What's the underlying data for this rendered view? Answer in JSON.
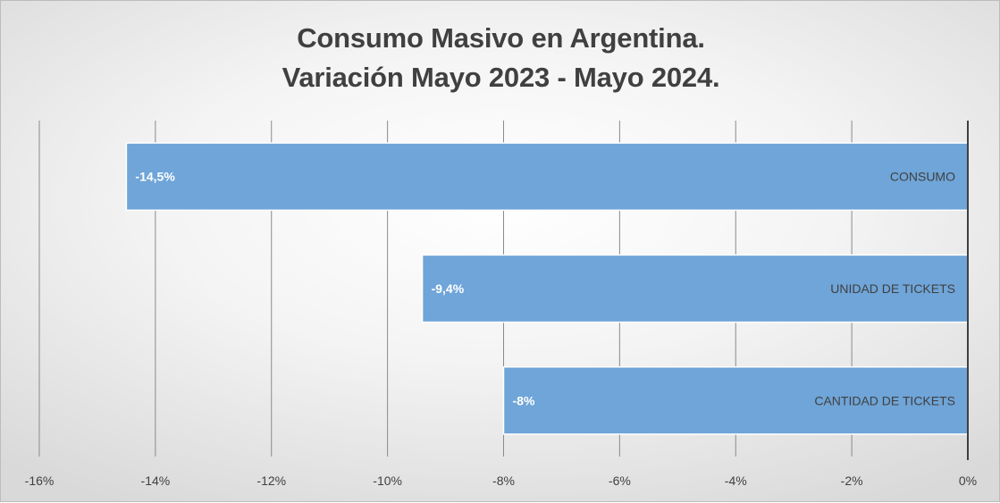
{
  "chart_data": {
    "type": "bar",
    "orientation": "horizontal",
    "title_line1": "Consumo Masivo en Argentina.",
    "title_line2": "Variación Mayo 2023 - Mayo 2024.",
    "categories": [
      "CONSUMO",
      "UNIDAD DE TICKETS",
      "CANTIDAD DE TICKETS"
    ],
    "values": [
      -14.5,
      -9.4,
      -8
    ],
    "data_labels": [
      "-14,5%",
      "-9,4%",
      "-8%"
    ],
    "x_ticks": [
      -16,
      -14,
      -12,
      -10,
      -8,
      -6,
      -4,
      -2,
      0
    ],
    "x_tick_labels": [
      "-16%",
      "-14%",
      "-12%",
      "-10%",
      "-8%",
      "-6%",
      "-4%",
      "-2%",
      "0%"
    ],
    "xlim": [
      -16,
      0
    ],
    "grid": true,
    "colors": {
      "bar": "#6fa5d8",
      "bar_edge": "#ffffff",
      "grid": "#8a8a8a",
      "axis": "#404040",
      "text": "#404040",
      "label": "#ffffff"
    }
  }
}
